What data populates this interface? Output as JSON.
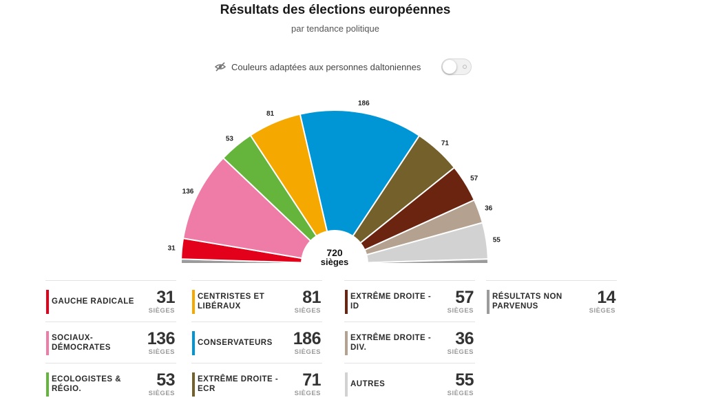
{
  "header": {
    "title": "Résultats des élections européennes",
    "subtitle": "par tendance politique"
  },
  "colorblind": {
    "label": "Couleurs adaptées aux personnes daltoniennes",
    "icon": "eye-slash-icon",
    "enabled": false
  },
  "chart_data": {
    "type": "pie",
    "variant": "half-donut (hemicycle)",
    "total_label": "720",
    "total_unit": "sièges",
    "total": 720,
    "slices": [
      {
        "name": "Résultats non parvenus",
        "value": 7,
        "color": "#9b9b9b",
        "show_label": false
      },
      {
        "name": "Gauche radicale",
        "value": 31,
        "color": "#e2001a",
        "show_label": true
      },
      {
        "name": "Sociaux-démocrates",
        "value": 136,
        "color": "#ee7ca6",
        "show_label": true
      },
      {
        "name": "Ecologistes & régio.",
        "value": 53,
        "color": "#65b43c",
        "show_label": true
      },
      {
        "name": "Centristes et libéraux",
        "value": 81,
        "color": "#f5a800",
        "show_label": true
      },
      {
        "name": "Conservateurs",
        "value": 186,
        "color": "#0096d6",
        "show_label": true
      },
      {
        "name": "Extrême droite - ECR",
        "value": 71,
        "color": "#74602b",
        "show_label": true
      },
      {
        "name": "Extrême droite - ID",
        "value": 57,
        "color": "#6a2410",
        "show_label": true
      },
      {
        "name": "Extrême droite - div.",
        "value": 36,
        "color": "#b4a190",
        "show_label": true
      },
      {
        "name": "Autres",
        "value": 55,
        "color": "#d2d2d2",
        "show_label": true
      },
      {
        "name": "Résultats non parvenus",
        "value": 7,
        "color": "#9b9b9b",
        "show_label": false
      }
    ]
  },
  "legend": {
    "unit": "sièges",
    "columns": [
      [
        {
          "name": "Gauche radicale",
          "value": "31",
          "color": "#e2001a"
        },
        {
          "name": "Sociaux-démocrates",
          "value": "136",
          "color": "#ee7ca6"
        },
        {
          "name": "Ecologistes & régio.",
          "value": "53",
          "color": "#65b43c"
        }
      ],
      [
        {
          "name": "Centristes et libéraux",
          "value": "81",
          "color": "#f5a800"
        },
        {
          "name": "Conservateurs",
          "value": "186",
          "color": "#0096d6"
        },
        {
          "name": "Extrême droite - ECR",
          "value": "71",
          "color": "#74602b"
        }
      ],
      [
        {
          "name": "Extrême droite - ID",
          "value": "57",
          "color": "#6a2410"
        },
        {
          "name": "Extrême droite - div.",
          "value": "36",
          "color": "#b4a190"
        },
        {
          "name": "Autres",
          "value": "55",
          "color": "#d2d2d2"
        }
      ],
      [
        {
          "name": "Résultats non parvenus",
          "value": "14",
          "color": "#9b9b9b"
        }
      ]
    ]
  }
}
